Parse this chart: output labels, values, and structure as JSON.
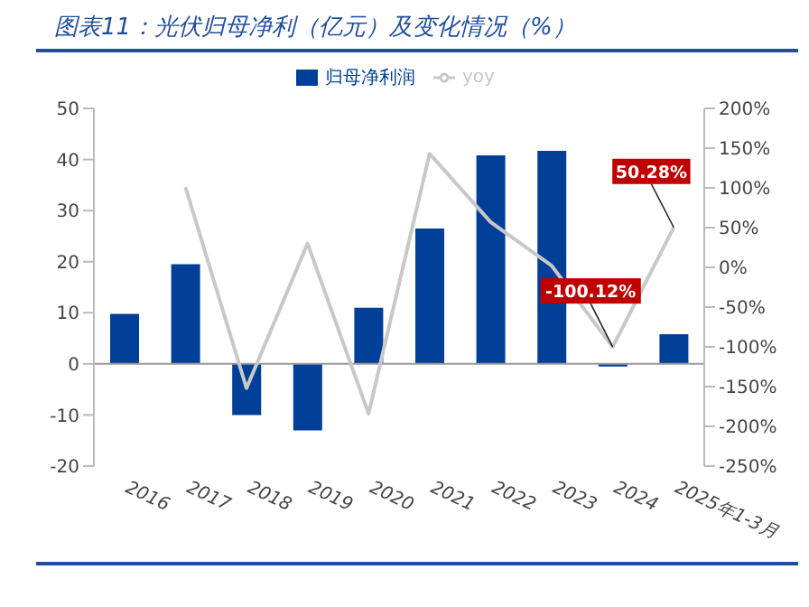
{
  "chart_data": {
    "type": "bar",
    "title": "图表11：光伏归母净利（亿元）及变化情况（%）",
    "categories": [
      "2016",
      "2017",
      "2018",
      "2019",
      "2020",
      "2021",
      "2022",
      "2023",
      "2024",
      "2025年1-3月"
    ],
    "series": [
      {
        "name": "归母净利润",
        "color": "#003f98",
        "values": [
          9.8,
          19.5,
          -10,
          -13,
          11,
          26.5,
          40.8,
          41.7,
          -0.5,
          5.8
        ]
      },
      {
        "name": "yoy",
        "type": "line",
        "axis": "y2",
        "color": "#c8c8c8",
        "values": [
          null,
          101,
          -152,
          30,
          -184,
          143,
          57,
          2,
          -100.12,
          50.28
        ],
        "value_labels": [
          null,
          null,
          null,
          null,
          null,
          null,
          null,
          null,
          "-100.12%",
          "50.28%"
        ]
      }
    ],
    "ylim": [
      -20,
      50
    ],
    "yticks": [
      -20,
      -10,
      0,
      10,
      20,
      30,
      40,
      50
    ],
    "y2lim": [
      -250,
      200
    ],
    "y2ticks": [
      {
        "value": -250,
        "label": "-250%"
      },
      {
        "value": -200,
        "label": "-200%"
      },
      {
        "value": -150,
        "label": "-150%"
      },
      {
        "value": -100,
        "label": "-100%"
      },
      {
        "value": -50,
        "label": "-50%"
      },
      {
        "value": 0,
        "label": "0%"
      },
      {
        "value": 50,
        "label": "50%"
      },
      {
        "value": 100,
        "label": "100%"
      },
      {
        "value": 150,
        "label": "150%"
      },
      {
        "value": 200,
        "label": "200%"
      }
    ],
    "ref_lines": [
      {
        "axis": "y",
        "value": 0,
        "color": "#999999"
      }
    ],
    "legend": "top",
    "marker": "none"
  }
}
